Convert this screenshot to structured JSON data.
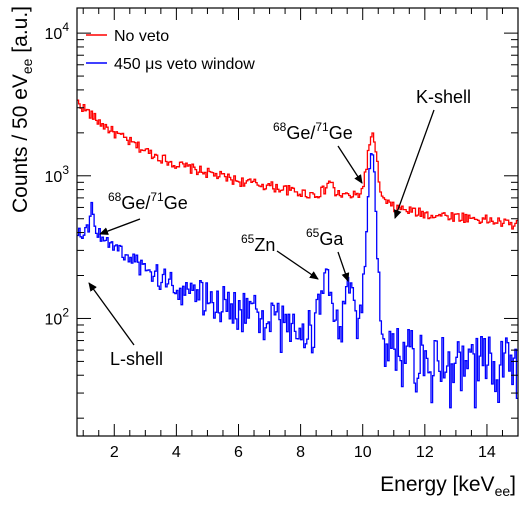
{
  "chart_data": {
    "type": "line",
    "xlabel": "Energy [keV",
    "xlabel_sub": "ee",
    "xlabel_close": "]",
    "ylabel": "Counts / 50 eV",
    "ylabel_sub": "ee",
    "ylabel_close": " [a.u.]",
    "xlim": [
      0.8,
      15.0
    ],
    "ylim": [
      15,
      15000
    ],
    "yscale": "log",
    "x_ticks": [
      "2",
      "4",
      "6",
      "8",
      "10",
      "12",
      "14"
    ],
    "y_ticks": [
      {
        "base": "10",
        "exp": "2",
        "value": 100
      },
      {
        "base": "10",
        "exp": "3",
        "value": 1000
      },
      {
        "base": "10",
        "exp": "4",
        "value": 10000
      }
    ],
    "legend_position": "top-left",
    "series": [
      {
        "name": "No veto",
        "color": "#ff0000",
        "x": [
          0.8,
          1.5,
          2,
          3,
          4,
          5,
          6,
          7,
          8,
          8.5,
          8.8,
          8.95,
          9.1,
          9.4,
          9.8,
          10.0,
          10.15,
          10.3,
          10.45,
          10.6,
          10.8,
          11,
          12,
          13,
          14,
          15
        ],
        "values": [
          3300,
          2400,
          2000,
          1500,
          1200,
          1050,
          920,
          850,
          760,
          740,
          800,
          950,
          760,
          730,
          720,
          800,
          1300,
          2100,
          1300,
          700,
          640,
          600,
          540,
          520,
          490,
          450
        ]
      },
      {
        "name": "450 μs veto window",
        "color": "#0000ff",
        "x": [
          0.8,
          1.0,
          1.2,
          1.3,
          1.4,
          1.6,
          2,
          3,
          4,
          5,
          6,
          7,
          7.8,
          8.4,
          8.7,
          8.85,
          8.95,
          9.1,
          9.3,
          9.5,
          9.6,
          9.7,
          9.9,
          10.1,
          10.2,
          10.3,
          10.4,
          10.5,
          10.7,
          11,
          12,
          13,
          14,
          15
        ],
        "values": [
          420,
          400,
          450,
          650,
          420,
          380,
          320,
          220,
          170,
          140,
          120,
          100,
          85,
          82,
          170,
          240,
          150,
          82,
          80,
          150,
          200,
          110,
          75,
          300,
          900,
          1600,
          900,
          200,
          70,
          62,
          55,
          45,
          50,
          48
        ]
      }
    ],
    "annotations": [
      {
        "text": "K-shell"
      },
      {
        "iso": "68",
        "el1": "Ge/",
        "iso2": "71",
        "el2": "Ge",
        "where": "upper"
      },
      {
        "iso": "68",
        "el1": "Ge/",
        "iso2": "71",
        "el2": "Ge",
        "where": "left"
      },
      {
        "iso": "65",
        "el1": "Zn"
      },
      {
        "iso": "65",
        "el1": "Ga"
      },
      {
        "text": "L-shell"
      }
    ]
  }
}
